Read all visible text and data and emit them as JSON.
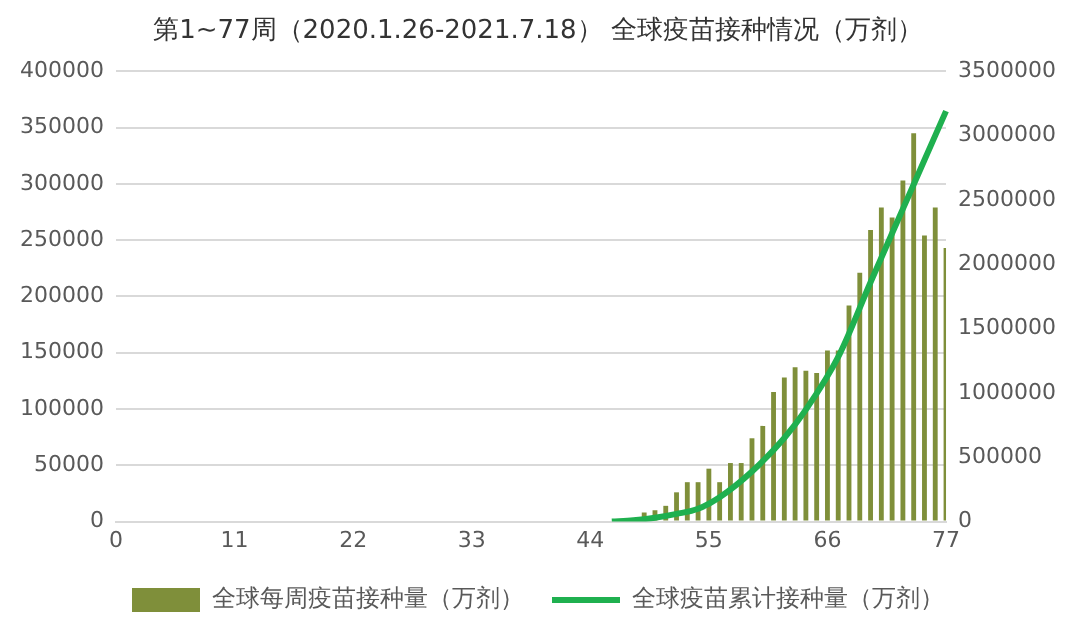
{
  "chart_data": {
    "type": "bar",
    "title": "第1~77周（2020.1.26-2021.7.18） 全球疫苗接种情况（万剂）",
    "categories": [
      "0",
      null,
      null,
      null,
      null,
      null,
      null,
      null,
      null,
      null,
      null,
      "11",
      null,
      null,
      null,
      null,
      null,
      null,
      null,
      null,
      null,
      null,
      "22",
      null,
      null,
      null,
      null,
      null,
      null,
      null,
      null,
      null,
      null,
      "33",
      null,
      null,
      null,
      null,
      null,
      null,
      null,
      null,
      null,
      null,
      "44",
      null,
      null,
      null,
      null,
      null,
      null,
      null,
      null,
      null,
      null,
      "55",
      null,
      null,
      null,
      null,
      null,
      null,
      null,
      null,
      null,
      null,
      "66",
      null,
      null,
      null,
      null,
      null,
      null,
      null,
      null,
      null,
      null,
      "77"
    ],
    "series": [
      {
        "name": "全球每周疫苗接种量（万剂）",
        "color": "#7f8f3a",
        "values": [
          null,
          null,
          null,
          null,
          null,
          null,
          null,
          null,
          null,
          null,
          null,
          null,
          null,
          null,
          null,
          null,
          null,
          null,
          null,
          null,
          null,
          null,
          null,
          null,
          null,
          null,
          null,
          null,
          null,
          null,
          null,
          null,
          null,
          null,
          null,
          null,
          null,
          null,
          null,
          null,
          null,
          null,
          null,
          null,
          null,
          null,
          null,
          null,
          null,
          8000,
          10000,
          14000,
          26000,
          35000,
          35000,
          47000,
          35000,
          52000,
          52000,
          74000,
          85000,
          115000,
          128000,
          137000,
          134000,
          132000,
          152000,
          152000,
          192000,
          221000,
          259000,
          279000,
          270000,
          303000,
          345000,
          254000,
          279000,
          243000
        ]
      },
      {
        "name": "全球疫苗累计接种量（万剂）",
        "type": "line",
        "axis": "y2",
        "color": "#1fb04f",
        "values": [
          null,
          null,
          null,
          null,
          null,
          null,
          null,
          null,
          null,
          null,
          null,
          null,
          null,
          null,
          null,
          null,
          null,
          null,
          null,
          null,
          null,
          null,
          null,
          null,
          null,
          null,
          null,
          null,
          null,
          null,
          null,
          null,
          null,
          null,
          null,
          null,
          null,
          null,
          null,
          null,
          null,
          null,
          null,
          null,
          null,
          null,
          0,
          null,
          10000,
          null,
          30000,
          null,
          60000,
          null,
          100000,
          null,
          190000,
          null,
          null,
          390000,
          null,
          null,
          650000,
          null,
          870000,
          null,
          null,
          1280000,
          null,
          null,
          1860000,
          null,
          null,
          2430000,
          null,
          2810000,
          null,
          3190000
        ]
      }
    ],
    "ylim": [
      0,
      400000
    ],
    "yticks": [
      0,
      50000,
      100000,
      150000,
      200000,
      250000,
      300000,
      350000,
      400000
    ],
    "y2lim": [
      0,
      3500000
    ],
    "y2ticks": [
      0,
      500000,
      1000000,
      1500000,
      2000000,
      2500000,
      3000000,
      3500000
    ],
    "grid": "y",
    "legend": "bottom",
    "marker": "none"
  }
}
